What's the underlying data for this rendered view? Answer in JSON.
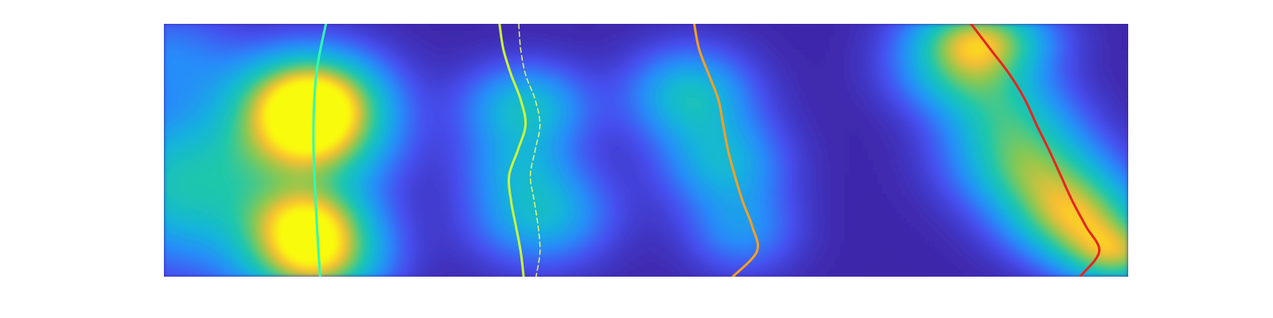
{
  "chart_data": {
    "type": "heatmap",
    "title": "",
    "xlabel": "",
    "ylabel": "",
    "axes_visible": false,
    "colormap": "parula",
    "background_color": "#3e26a8",
    "x_range": [
      0,
      1
    ],
    "y_range": [
      0,
      1
    ],
    "density_blobs": [
      {
        "x": 0.02,
        "y": 0.36,
        "sx": 0.07,
        "sy": 0.22,
        "v": 0.55
      },
      {
        "x": 0.005,
        "y": 0.88,
        "sx": 0.05,
        "sy": 0.14,
        "v": 0.25
      },
      {
        "x": 0.155,
        "y": 0.59,
        "sx": 0.055,
        "sy": 0.18,
        "v": 0.95
      },
      {
        "x": 0.15,
        "y": 0.72,
        "sx": 0.05,
        "sy": 0.12,
        "v": 0.45
      },
      {
        "x": 0.155,
        "y": 0.08,
        "sx": 0.05,
        "sy": 0.12,
        "v": 0.92
      },
      {
        "x": 0.15,
        "y": 0.24,
        "sx": 0.045,
        "sy": 0.09,
        "v": 0.45
      },
      {
        "x": 0.375,
        "y": 0.67,
        "sx": 0.045,
        "sy": 0.12,
        "v": 0.5
      },
      {
        "x": 0.39,
        "y": 0.25,
        "sx": 0.05,
        "sy": 0.14,
        "v": 0.48
      },
      {
        "x": 0.365,
        "y": 0.45,
        "sx": 0.04,
        "sy": 0.1,
        "v": 0.22
      },
      {
        "x": 0.545,
        "y": 0.72,
        "sx": 0.045,
        "sy": 0.13,
        "v": 0.5
      },
      {
        "x": 0.58,
        "y": 0.45,
        "sx": 0.045,
        "sy": 0.13,
        "v": 0.42
      },
      {
        "x": 0.6,
        "y": 0.18,
        "sx": 0.04,
        "sy": 0.12,
        "v": 0.3
      },
      {
        "x": 0.845,
        "y": 0.94,
        "sx": 0.05,
        "sy": 0.1,
        "v": 0.78
      },
      {
        "x": 0.83,
        "y": 0.78,
        "sx": 0.05,
        "sy": 0.1,
        "v": 0.4
      },
      {
        "x": 0.875,
        "y": 0.62,
        "sx": 0.05,
        "sy": 0.12,
        "v": 0.45
      },
      {
        "x": 0.9,
        "y": 0.42,
        "sx": 0.055,
        "sy": 0.12,
        "v": 0.55
      },
      {
        "x": 0.945,
        "y": 0.23,
        "sx": 0.05,
        "sy": 0.12,
        "v": 0.72
      },
      {
        "x": 0.99,
        "y": 0.08,
        "sx": 0.04,
        "sy": 0.09,
        "v": 0.6
      }
    ],
    "series": [
      {
        "color": "#2ffcb0",
        "line_style": "solid",
        "x": [
          0.168,
          0.158,
          0.155,
          0.158,
          0.162
        ],
        "y": [
          1.0,
          0.8,
          0.55,
          0.25,
          0.0
        ]
      },
      {
        "color": "#c8f53a",
        "line_style": "solid",
        "x": [
          0.348,
          0.352,
          0.36,
          0.37,
          0.375,
          0.367,
          0.358,
          0.36,
          0.365,
          0.37,
          0.373
        ],
        "y": [
          1.0,
          0.9,
          0.8,
          0.7,
          0.6,
          0.5,
          0.4,
          0.3,
          0.2,
          0.1,
          0.0
        ]
      },
      {
        "color": "#e8f56a",
        "line_style": "dashed",
        "x": [
          0.368,
          0.37,
          0.375,
          0.385,
          0.39,
          0.385,
          0.38,
          0.384,
          0.388,
          0.39,
          0.386
        ],
        "y": [
          1.0,
          0.9,
          0.8,
          0.7,
          0.6,
          0.5,
          0.4,
          0.3,
          0.2,
          0.1,
          0.0
        ]
      },
      {
        "color": "#f5a020",
        "line_style": "solid",
        "x": [
          0.55,
          0.555,
          0.565,
          0.575,
          0.58,
          0.585,
          0.592,
          0.6,
          0.61,
          0.615,
          0.59
        ],
        "y": [
          1.0,
          0.9,
          0.8,
          0.7,
          0.6,
          0.5,
          0.4,
          0.3,
          0.2,
          0.1,
          0.0
        ]
      },
      {
        "color": "#e8251e",
        "line_style": "solid",
        "x": [
          0.837,
          0.857,
          0.877,
          0.893,
          0.905,
          0.918,
          0.93,
          0.942,
          0.956,
          0.97,
          0.95
        ],
        "y": [
          1.0,
          0.9,
          0.8,
          0.7,
          0.6,
          0.5,
          0.4,
          0.3,
          0.2,
          0.1,
          0.0
        ]
      }
    ]
  }
}
